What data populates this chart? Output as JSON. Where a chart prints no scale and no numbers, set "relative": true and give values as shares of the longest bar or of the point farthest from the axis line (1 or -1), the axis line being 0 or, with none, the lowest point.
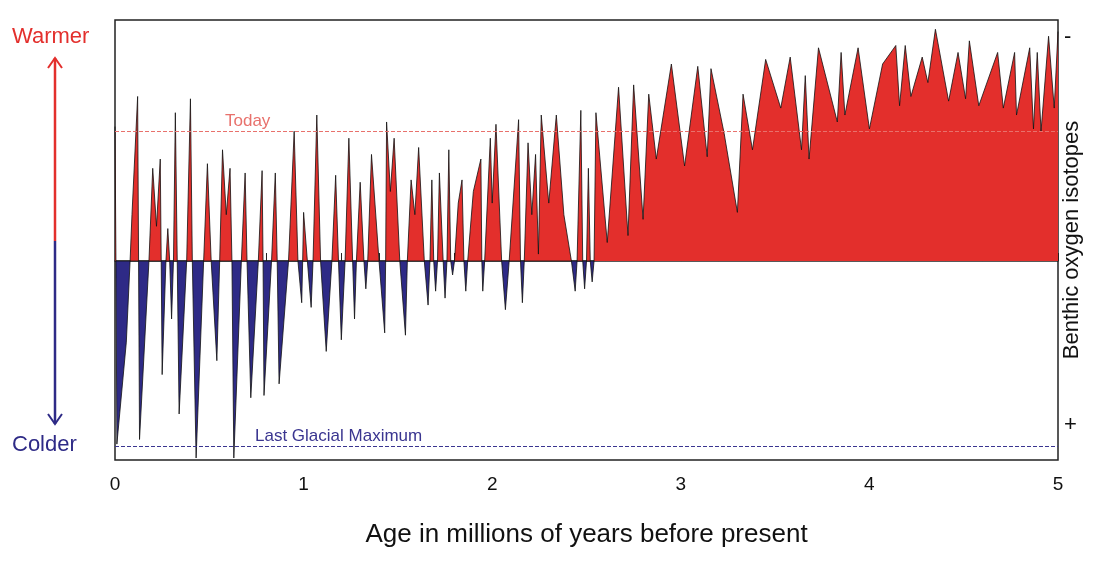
{
  "chart_data": {
    "type": "area",
    "relative": true,
    "xlabel": "Age in millions of years before present",
    "ylabel": "Benthic oxygen isotopes",
    "annotations": [
      "Warmer",
      "Colder",
      "-",
      "+"
    ],
    "xlim": [
      0,
      5
    ],
    "xticks": [
      0,
      {
        "value": 0.2,
        "label": null
      },
      {
        "value": 0.4,
        "label": null
      },
      {
        "value": 0.6,
        "label": null
      },
      {
        "value": 0.8,
        "label": null
      },
      1,
      {
        "value": 1.2,
        "label": null
      },
      {
        "value": 1.4,
        "label": null
      },
      {
        "value": 1.6,
        "label": null
      },
      {
        "value": 1.8,
        "label": null
      },
      2,
      {
        "value": 2.2,
        "label": null
      },
      {
        "value": 2.4,
        "label": null
      },
      {
        "value": 2.6,
        "label": null
      },
      {
        "value": 2.8,
        "label": null
      },
      3,
      {
        "value": 3.2,
        "label": null
      },
      {
        "value": 3.4,
        "label": null
      },
      {
        "value": 3.6,
        "label": null
      },
      {
        "value": 3.8,
        "label": null
      },
      4,
      {
        "value": 4.2,
        "label": null
      },
      {
        "value": 4.4,
        "label": null
      },
      {
        "value": 4.6,
        "label": null
      },
      {
        "value": 4.8,
        "label": null
      },
      5
    ],
    "grid": false,
    "ref_lines": [
      {
        "axis": "y",
        "value": 0.56,
        "label": "Today",
        "color": "#e8716c",
        "line_style": "dashed"
      },
      {
        "axis": "y",
        "value": -0.8,
        "label": "Last Glacial Maximum",
        "color": "#3a3590",
        "line_style": "dashed"
      }
    ],
    "series": [
      {
        "color": "#e32f2c",
        "x": [
          0,
          0.005,
          0.08,
          0.09,
          0.12,
          0.125,
          0.18,
          0.2,
          0.22,
          0.24,
          0.245,
          0.27,
          0.28,
          0.29,
          0.31,
          0.32,
          0.33,
          0.38,
          0.4,
          0.41,
          0.47,
          0.49,
          0.51,
          0.555,
          0.57,
          0.59,
          0.61,
          0.62,
          0.67,
          0.69,
          0.7,
          0.76,
          0.78,
          0.785,
          0.83,
          0.85,
          0.86,
          0.92,
          0.95,
          0.97,
          0.995,
          1,
          1.02,
          1.05,
          1.07,
          1.09,
          1.15,
          1.17,
          1.185,
          1.22,
          1.24,
          1.26,
          1.28,
          1.3,
          1.32,
          1.34,
          1.36,
          1.4,
          1.435,
          1.44,
          1.46,
          1.48,
          1.51,
          1.55,
          1.57,
          1.59,
          1.61,
          1.64,
          1.67,
          1.68,
          1.69,
          1.71,
          1.72,
          1.74,
          1.76,
          1.77,
          1.78,
          1.8,
          1.82,
          1.84,
          1.85,
          1.87,
          1.9,
          1.94,
          1.945,
          1.96,
          1.99,
          2,
          2.02,
          2.05,
          2.09,
          2.14,
          2.15,
          2.17,
          2.19,
          2.21,
          2.23,
          2.245,
          2.26,
          2.3,
          2.34,
          2.38,
          2.42,
          2.45,
          2.47,
          2.48,
          2.5,
          2.51,
          2.52,
          2.54,
          2.55,
          2.61,
          2.67,
          2.72,
          2.75,
          2.8,
          2.83,
          2.87,
          2.95,
          3.02,
          3.09,
          3.14,
          3.16,
          3.23,
          3.3,
          3.33,
          3.38,
          3.45,
          3.53,
          3.58,
          3.64,
          3.66,
          3.68,
          3.73,
          3.83,
          3.85,
          3.87,
          3.94,
          4,
          4.07,
          4.14,
          4.16,
          4.19,
          4.22,
          4.28,
          4.31,
          4.35,
          4.42,
          4.47,
          4.51,
          4.53,
          4.58,
          4.68,
          4.71,
          4.77,
          4.78,
          4.85,
          4.87,
          4.89,
          4.91,
          4.95,
          4.98,
          5
        ],
        "values": [
          0.58,
          0,
          0,
          0.2,
          0.71,
          0,
          0,
          0.4,
          0.15,
          0.44,
          0,
          0,
          0.14,
          0,
          0,
          0.64,
          0,
          0,
          0.7,
          0,
          0,
          0.42,
          0,
          0,
          0.48,
          0.2,
          0.4,
          0,
          0,
          0.38,
          0,
          0,
          0.39,
          0,
          0,
          0.38,
          0,
          0,
          0.56,
          0,
          0,
          0.21,
          0,
          0,
          0.63,
          0,
          0,
          0.37,
          0,
          0,
          0.53,
          0,
          0,
          0.34,
          0,
          0,
          0.46,
          0,
          0,
          0.6,
          0.3,
          0.53,
          0,
          0,
          0.35,
          0.2,
          0.49,
          0,
          0,
          0.35,
          0,
          0,
          0.38,
          0,
          0,
          0.48,
          0,
          0,
          0.25,
          0.35,
          0,
          0,
          0.3,
          0.44,
          0,
          0,
          0.53,
          0.25,
          0.59,
          0,
          0,
          0.61,
          0,
          0,
          0.51,
          0.2,
          0.46,
          0.03,
          0.63,
          0.25,
          0.63,
          0.2,
          0,
          0,
          0.65,
          0,
          0,
          0.4,
          0,
          0,
          0.64,
          0.08,
          0.75,
          0.11,
          0.76,
          0.18,
          0.72,
          0.44,
          0.85,
          0.41,
          0.84,
          0.45,
          0.83,
          0.55,
          0.21,
          0.72,
          0.48,
          0.87,
          0.66,
          0.88,
          0.48,
          0.8,
          0.44,
          0.92,
          0.6,
          0.9,
          0.63,
          0.92,
          0.57,
          0.85,
          0.93,
          0.67,
          0.93,
          0.71,
          0.88,
          0.77,
          1,
          0.69,
          0.9,
          0.7,
          0.95,
          0.67,
          0.9,
          0.66,
          0.9,
          0.63,
          0.92,
          0.57,
          0.9,
          0.56,
          0.97,
          0.66,
          0.99
        ]
      },
      {
        "color": "#2e2a86",
        "x": [
          0.005,
          0.01,
          0.06,
          0.08,
          0.125,
          0.13,
          0.18,
          0.245,
          0.25,
          0.27,
          0.29,
          0.3,
          0.31,
          0.33,
          0.34,
          0.38,
          0.41,
          0.43,
          0.47,
          0.51,
          0.54,
          0.555,
          0.62,
          0.63,
          0.67,
          0.7,
          0.72,
          0.76,
          0.785,
          0.79,
          0.83,
          0.86,
          0.87,
          0.92,
          0.97,
          0.99,
          0.995,
          1.02,
          1.04,
          1.05,
          1.09,
          1.12,
          1.15,
          1.185,
          1.2,
          1.22,
          1.26,
          1.27,
          1.28,
          1.32,
          1.33,
          1.34,
          1.4,
          1.43,
          1.435,
          1.51,
          1.54,
          1.55,
          1.64,
          1.66,
          1.67,
          1.69,
          1.7,
          1.71,
          1.74,
          1.75,
          1.76,
          1.78,
          1.79,
          1.8,
          1.85,
          1.86,
          1.87,
          1.945,
          1.95,
          1.96,
          2.05,
          2.07,
          2.09,
          2.15,
          2.16,
          2.17,
          2.42,
          2.44,
          2.45,
          2.48,
          2.49,
          2.5,
          2.52,
          2.53,
          2.54
        ],
        "values": [
          0,
          -0.79,
          -0.35,
          0,
          0,
          -0.77,
          0,
          0,
          -0.49,
          0,
          0,
          -0.25,
          0,
          0,
          -0.66,
          0,
          0,
          -0.85,
          0,
          0,
          -0.43,
          0,
          0,
          -0.85,
          0,
          0,
          -0.59,
          0,
          0,
          -0.58,
          0,
          0,
          -0.53,
          0,
          0,
          -0.18,
          0,
          0,
          -0.2,
          0,
          0,
          -0.39,
          0,
          0,
          -0.34,
          0,
          0,
          -0.25,
          0,
          0,
          -0.12,
          0,
          0,
          -0.31,
          0,
          0,
          -0.32,
          0,
          0,
          -0.19,
          0,
          0,
          -0.13,
          0,
          0,
          -0.16,
          0,
          0,
          -0.06,
          0,
          0,
          -0.13,
          0,
          0,
          -0.13,
          0,
          0,
          -0.21,
          0,
          0,
          -0.18,
          0,
          0,
          -0.13,
          0,
          0,
          -0.12,
          0,
          0,
          -0.09,
          0
        ]
      }
    ]
  }
}
